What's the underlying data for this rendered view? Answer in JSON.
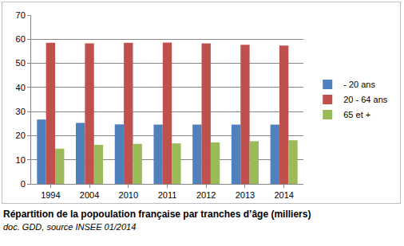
{
  "chart_data": {
    "type": "bar",
    "title": "Répartition de la popoulation française par tranches d’âge (milliers)",
    "subtitle": "doc. GDD, source INSEE 01/2014",
    "categories": [
      "1994",
      "2004",
      "2010",
      "2011",
      "2012",
      "2013",
      "2014"
    ],
    "series": [
      {
        "name": "- 20 ans",
        "color": "#4f81bd",
        "values": [
          26.7,
          25.3,
          24.7,
          24.6,
          24.6,
          24.6,
          24.6
        ]
      },
      {
        "name": "20 - 64 ans",
        "color": "#c0504d",
        "values": [
          58.5,
          58.3,
          58.5,
          58.6,
          58.3,
          57.7,
          57.4
        ]
      },
      {
        "name": "65 et +",
        "color": "#9bbb59",
        "values": [
          14.6,
          16.2,
          16.6,
          16.8,
          17.2,
          17.7,
          18.1
        ]
      }
    ],
    "ylim": [
      0,
      70
    ],
    "yticks": [
      0,
      10,
      20,
      30,
      40,
      50,
      60,
      70
    ],
    "grid": true,
    "legend": "right"
  }
}
